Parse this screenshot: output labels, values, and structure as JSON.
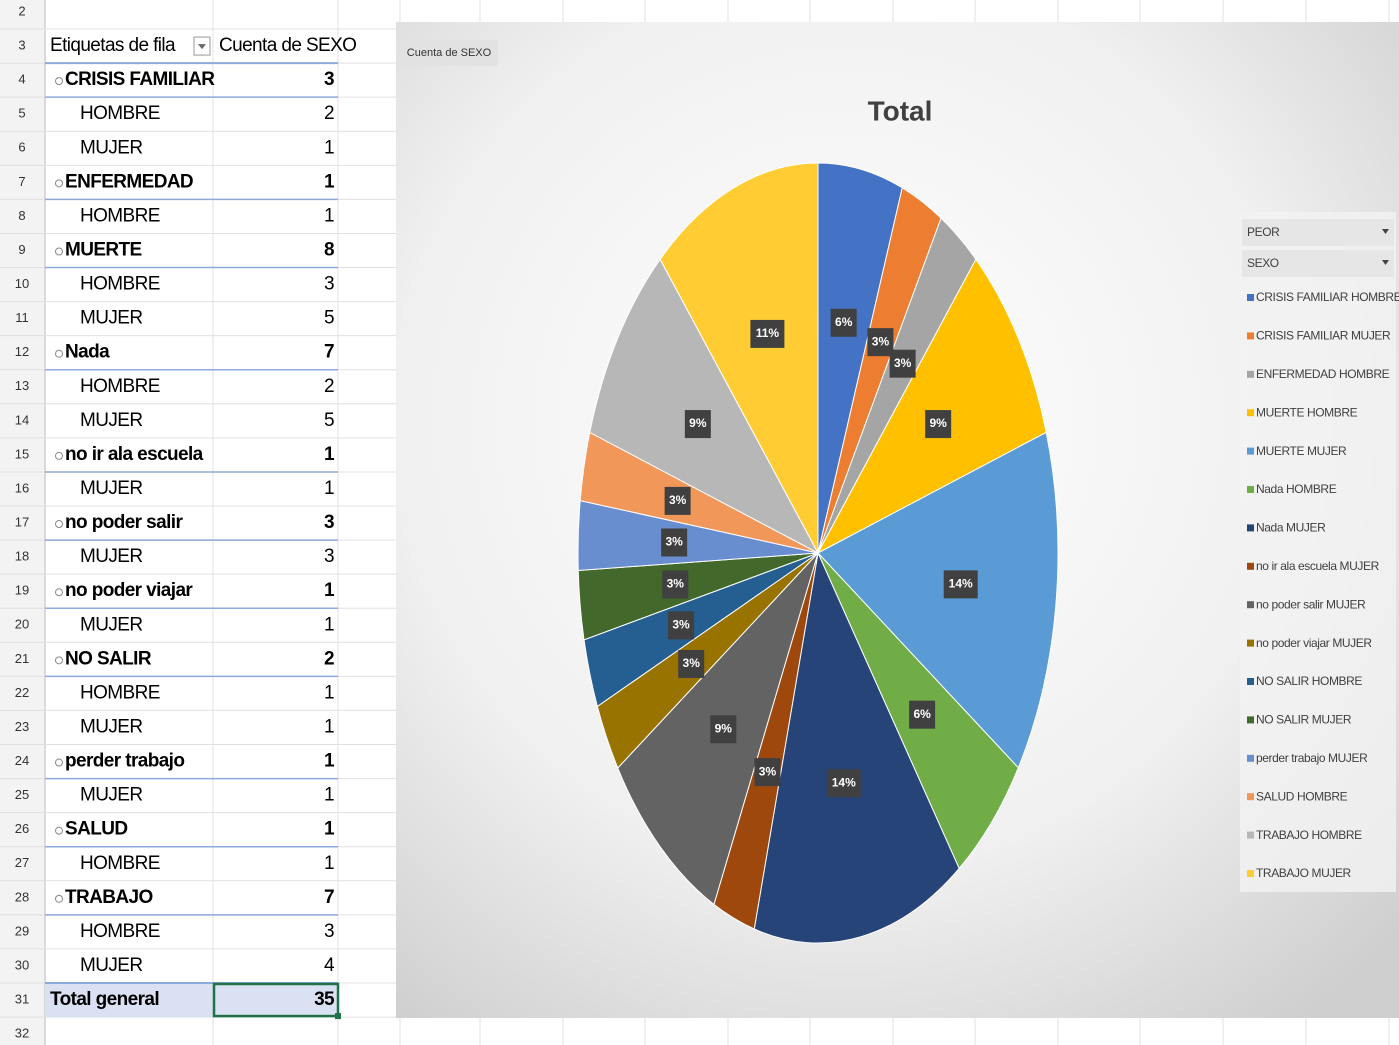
{
  "row_numbers": [
    2,
    3,
    4,
    5,
    6,
    7,
    8,
    9,
    10,
    11,
    12,
    13,
    14,
    15,
    16,
    17,
    18,
    19,
    20,
    21,
    22,
    23,
    24,
    25,
    26,
    27,
    28,
    29,
    30,
    31,
    32
  ],
  "table": {
    "header": [
      "Etiquetas de fila",
      "Cuenta de SEXO"
    ],
    "groups": [
      {
        "label": "CRISIS FAMILIAR",
        "count": 3,
        "items": [
          {
            "label": "HOMBRE",
            "count": 2
          },
          {
            "label": "MUJER",
            "count": 1
          }
        ]
      },
      {
        "label": "ENFERMEDAD",
        "count": 1,
        "items": [
          {
            "label": "HOMBRE",
            "count": 1
          }
        ]
      },
      {
        "label": "MUERTE",
        "count": 8,
        "items": [
          {
            "label": "HOMBRE",
            "count": 3
          },
          {
            "label": "MUJER",
            "count": 5
          }
        ]
      },
      {
        "label": "Nada",
        "count": 7,
        "items": [
          {
            "label": "HOMBRE",
            "count": 2
          },
          {
            "label": "MUJER",
            "count": 5
          }
        ]
      },
      {
        "label": "no ir ala escuela",
        "count": 1,
        "items": [
          {
            "label": "MUJER",
            "count": 1
          }
        ]
      },
      {
        "label": "no poder salir",
        "count": 3,
        "items": [
          {
            "label": "MUJER",
            "count": 3
          }
        ]
      },
      {
        "label": "no poder viajar",
        "count": 1,
        "items": [
          {
            "label": "MUJER",
            "count": 1
          }
        ]
      },
      {
        "label": "NO SALIR",
        "count": 2,
        "items": [
          {
            "label": "HOMBRE",
            "count": 1
          },
          {
            "label": "MUJER",
            "count": 1
          }
        ]
      },
      {
        "label": "perder trabajo",
        "count": 1,
        "items": [
          {
            "label": "MUJER",
            "count": 1
          }
        ]
      },
      {
        "label": "SALUD",
        "count": 1,
        "items": [
          {
            "label": "HOMBRE",
            "count": 1
          }
        ]
      },
      {
        "label": "TRABAJO",
        "count": 7,
        "items": [
          {
            "label": "HOMBRE",
            "count": 3
          },
          {
            "label": "MUJER",
            "count": 4
          }
        ]
      }
    ],
    "total": {
      "label": "Total general",
      "count": 35
    }
  },
  "chart_data": {
    "type": "pie",
    "tab": "Cuenta de SEXO",
    "title": "Total",
    "filters": [
      "PEOR",
      "SEXO"
    ],
    "categories": [
      "CRISIS FAMILIAR HOMBRE",
      "CRISIS FAMILIAR MUJER",
      "ENFERMEDAD HOMBRE",
      "MUERTE HOMBRE",
      "MUERTE MUJER",
      "Nada HOMBRE",
      "Nada MUJER",
      "no ir ala escuela MUJER",
      "no poder salir MUJER",
      "no poder viajar MUJER",
      "NO SALIR HOMBRE",
      "NO SALIR MUJER",
      "perder trabajo MUJER",
      "SALUD HOMBRE",
      "TRABAJO HOMBRE",
      "TRABAJO MUJER"
    ],
    "values": [
      5.71,
      2.86,
      2.86,
      8.57,
      14.29,
      5.71,
      14.29,
      2.86,
      8.57,
      2.86,
      2.86,
      2.86,
      2.86,
      2.86,
      8.57,
      11.43
    ],
    "value_labels": [
      "6%",
      "3%",
      "3%",
      "9%",
      "14%",
      "6%",
      "14%",
      "3%",
      "9%",
      "3%",
      "3%",
      "3%",
      "3%",
      "3%",
      "9%",
      "11%"
    ],
    "colors": [
      "#4472c4",
      "#ed7d31",
      "#a5a5a5",
      "#ffc000",
      "#5b9bd5",
      "#70ad47",
      "#264478",
      "#9e480e",
      "#636363",
      "#997300",
      "#255e91",
      "#43682b",
      "#698ed0",
      "#f1975a",
      "#b7b7b7",
      "#ffcd33"
    ],
    "legend": "right"
  }
}
